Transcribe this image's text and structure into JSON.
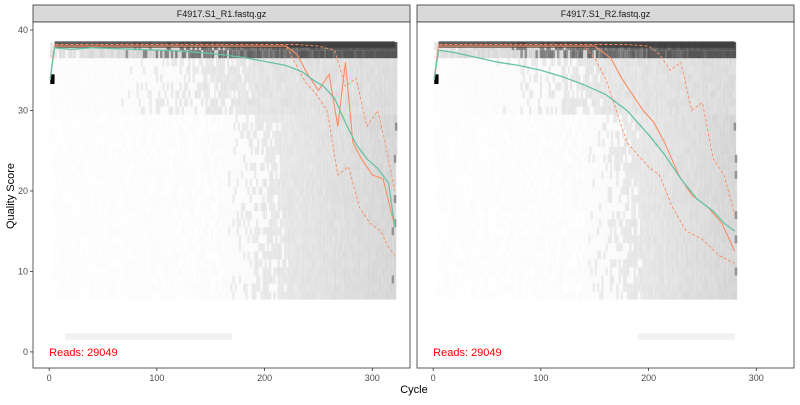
{
  "chart_data": {
    "type": "heatmap",
    "xlabel": "Cycle",
    "ylabel": "Quality Score",
    "xlim": [
      -15,
      335
    ],
    "ylim": [
      -2,
      41
    ],
    "x_ticks": [
      0,
      100,
      200,
      300
    ],
    "y_ticks": [
      0,
      10,
      20,
      30,
      40
    ],
    "colors": {
      "mean_line": "#66c2a5",
      "quantile_lines": "#fc8d62",
      "reads_text": "#ff0000",
      "strip_fill": "#d9d9d9",
      "panel_border": "#333333",
      "heat_light": "#f0f0f0",
      "heat_dark": "#000000"
    },
    "panels": [
      {
        "title": "F4917.S1_R1.fastq.gz",
        "reads_label": "Reads:  29049",
        "max_cycle": 321,
        "mean": [
          [
            1,
            33.8
          ],
          [
            5,
            37.8
          ],
          [
            20,
            37.6
          ],
          [
            40,
            37.8
          ],
          [
            80,
            37.6
          ],
          [
            120,
            37.4
          ],
          [
            150,
            37.1
          ],
          [
            180,
            36.6
          ],
          [
            200,
            36.1
          ],
          [
            220,
            35.6
          ],
          [
            235,
            34.8
          ],
          [
            245,
            33.8
          ],
          [
            255,
            33.0
          ],
          [
            265,
            31.5
          ],
          [
            275,
            28.5
          ],
          [
            285,
            25.8
          ],
          [
            295,
            24.0
          ],
          [
            305,
            22.8
          ],
          [
            315,
            21.0
          ],
          [
            321,
            15.5
          ]
        ],
        "median": [
          [
            1,
            34.0
          ],
          [
            5,
            38.0
          ],
          [
            220,
            38.0
          ],
          [
            230,
            37.0
          ],
          [
            240,
            34.5
          ],
          [
            250,
            32.5
          ],
          [
            260,
            34.5
          ],
          [
            268,
            28.0
          ],
          [
            275,
            36.0
          ],
          [
            282,
            26.0
          ],
          [
            290,
            24.0
          ],
          [
            300,
            22.0
          ],
          [
            310,
            21.5
          ],
          [
            321,
            15.5
          ]
        ],
        "q25": [
          [
            1,
            34.0
          ],
          [
            5,
            38.0
          ],
          [
            220,
            38.0
          ],
          [
            228,
            36.0
          ],
          [
            238,
            33.5
          ],
          [
            248,
            32.0
          ],
          [
            258,
            30.0
          ],
          [
            268,
            22.0
          ],
          [
            278,
            23.0
          ],
          [
            288,
            18.0
          ],
          [
            298,
            16.0
          ],
          [
            308,
            15.0
          ],
          [
            315,
            13.0
          ],
          [
            321,
            12.0
          ]
        ],
        "q75": [
          [
            1,
            34.0
          ],
          [
            5,
            38.2
          ],
          [
            230,
            38.2
          ],
          [
            250,
            38.0
          ],
          [
            265,
            37.5
          ],
          [
            275,
            33.0
          ],
          [
            285,
            34.0
          ],
          [
            295,
            28.0
          ],
          [
            305,
            30.0
          ],
          [
            312,
            26.0
          ],
          [
            321,
            20.0
          ]
        ]
      },
      {
        "title": "F4917.S1_R2.fastq.gz",
        "reads_label": "Reads:  29049",
        "max_cycle": 280,
        "mean": [
          [
            1,
            33.8
          ],
          [
            5,
            37.5
          ],
          [
            20,
            37.2
          ],
          [
            40,
            36.6
          ],
          [
            60,
            36.0
          ],
          [
            80,
            35.6
          ],
          [
            100,
            35.0
          ],
          [
            120,
            34.2
          ],
          [
            140,
            33.2
          ],
          [
            160,
            32.0
          ],
          [
            180,
            30.0
          ],
          [
            200,
            27.0
          ],
          [
            215,
            24.5
          ],
          [
            230,
            21.5
          ],
          [
            245,
            19.0
          ],
          [
            260,
            17.5
          ],
          [
            270,
            16.0
          ],
          [
            280,
            15.0
          ]
        ],
        "median": [
          [
            1,
            34.0
          ],
          [
            5,
            38.0
          ],
          [
            150,
            38.0
          ],
          [
            165,
            36.5
          ],
          [
            175,
            34.0
          ],
          [
            185,
            32.0
          ],
          [
            195,
            30.0
          ],
          [
            205,
            28.5
          ],
          [
            215,
            26.0
          ],
          [
            228,
            22.0
          ],
          [
            240,
            19.5
          ],
          [
            255,
            18.0
          ],
          [
            268,
            16.0
          ],
          [
            280,
            12.5
          ]
        ],
        "q25": [
          [
            1,
            34.0
          ],
          [
            5,
            38.0
          ],
          [
            140,
            38.0
          ],
          [
            150,
            36.5
          ],
          [
            160,
            34.0
          ],
          [
            170,
            30.0
          ],
          [
            180,
            26.0
          ],
          [
            190,
            24.5
          ],
          [
            200,
            23.0
          ],
          [
            210,
            22.0
          ],
          [
            222,
            18.0
          ],
          [
            235,
            15.0
          ],
          [
            250,
            14.0
          ],
          [
            265,
            12.0
          ],
          [
            280,
            11.0
          ]
        ],
        "q75": [
          [
            1,
            34.0
          ],
          [
            5,
            38.2
          ],
          [
            180,
            38.2
          ],
          [
            200,
            38.0
          ],
          [
            210,
            37.0
          ],
          [
            220,
            35.0
          ],
          [
            230,
            36.0
          ],
          [
            240,
            30.0
          ],
          [
            250,
            31.0
          ],
          [
            260,
            24.0
          ],
          [
            270,
            22.0
          ],
          [
            280,
            17.0
          ]
        ]
      }
    ]
  }
}
